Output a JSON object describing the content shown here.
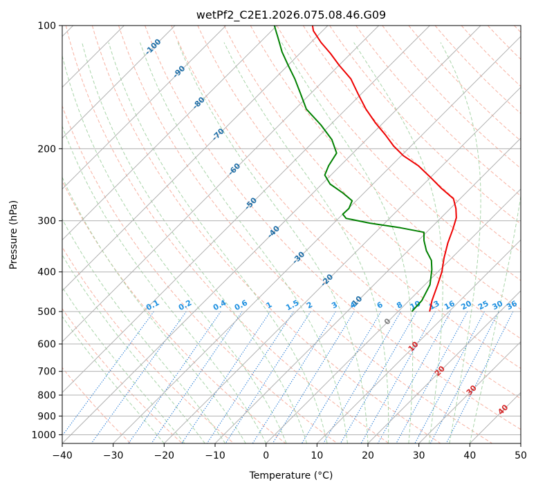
{
  "chart_data": {
    "type": "line",
    "title": "wetPf2_C2E1.2026.075.08.46.G09",
    "xlabel": "Temperature (°C)",
    "ylabel": "Pressure (hPa)",
    "xlim": [
      -40,
      50
    ],
    "ylim": [
      1050,
      100
    ],
    "y_scale": "log",
    "grid": true,
    "x_ticks": [
      "−40",
      "−30",
      "−20",
      "−10",
      "0",
      "10",
      "20",
      "30",
      "40",
      "50"
    ],
    "y_ticks": [
      {
        "value": 100,
        "label": "100"
      },
      {
        "value": 200,
        "label": "200"
      },
      {
        "value": 300,
        "label": "300"
      },
      {
        "value": 400,
        "label": "400"
      },
      {
        "value": 500,
        "label": "500"
      },
      {
        "value": 600,
        "label": "600"
      },
      {
        "value": 700,
        "label": "700"
      },
      {
        "value": 800,
        "label": "800"
      },
      {
        "value": 900,
        "label": "900"
      },
      {
        "value": 1000,
        "label": "1000"
      }
    ],
    "series": [
      {
        "color": "#ee0000",
        "points": [
          {
            "x": 6.2,
            "y": 500
          },
          {
            "x": 4.5,
            "y": 470
          },
          {
            "x": 2.5,
            "y": 430
          },
          {
            "x": 0.8,
            "y": 400
          },
          {
            "x": -1.5,
            "y": 370
          },
          {
            "x": -3.7,
            "y": 340
          },
          {
            "x": -5.4,
            "y": 315
          },
          {
            "x": -7.0,
            "y": 295
          },
          {
            "x": -8.9,
            "y": 280
          },
          {
            "x": -11.3,
            "y": 265
          },
          {
            "x": -15.7,
            "y": 250
          },
          {
            "x": -20.0,
            "y": 235
          },
          {
            "x": -24.7,
            "y": 220
          },
          {
            "x": -29.6,
            "y": 208
          },
          {
            "x": -33.4,
            "y": 197
          },
          {
            "x": -37.2,
            "y": 185
          },
          {
            "x": -41.5,
            "y": 173
          },
          {
            "x": -46.1,
            "y": 160
          },
          {
            "x": -50.6,
            "y": 147
          },
          {
            "x": -55.0,
            "y": 135
          },
          {
            "x": -60.0,
            "y": 125
          },
          {
            "x": -64.0,
            "y": 117
          },
          {
            "x": -68.0,
            "y": 110
          },
          {
            "x": -71.8,
            "y": 103
          },
          {
            "x": -73.0,
            "y": 100
          }
        ]
      },
      {
        "color": "#008000",
        "points": [
          {
            "x": 2.7,
            "y": 500
          },
          {
            "x": 2.5,
            "y": 470
          },
          {
            "x": 1.0,
            "y": 430
          },
          {
            "x": -1.6,
            "y": 395
          },
          {
            "x": -3.5,
            "y": 375
          },
          {
            "x": -6.4,
            "y": 355
          },
          {
            "x": -8.9,
            "y": 335
          },
          {
            "x": -10.5,
            "y": 320
          },
          {
            "x": -16.0,
            "y": 312
          },
          {
            "x": -22.9,
            "y": 304
          },
          {
            "x": -28.5,
            "y": 296
          },
          {
            "x": -30.0,
            "y": 289
          },
          {
            "x": -29.9,
            "y": 280
          },
          {
            "x": -30.8,
            "y": 268
          },
          {
            "x": -34.3,
            "y": 256
          },
          {
            "x": -38.4,
            "y": 244
          },
          {
            "x": -41.2,
            "y": 232
          },
          {
            "x": -42.3,
            "y": 220
          },
          {
            "x": -43.2,
            "y": 205
          },
          {
            "x": -46.8,
            "y": 190
          },
          {
            "x": -51.8,
            "y": 175
          },
          {
            "x": -57.8,
            "y": 160
          },
          {
            "x": -62.2,
            "y": 146
          },
          {
            "x": -66.0,
            "y": 135
          },
          {
            "x": -70.0,
            "y": 125
          },
          {
            "x": -73.8,
            "y": 116
          },
          {
            "x": -77.0,
            "y": 108
          },
          {
            "x": -79.6,
            "y": 102
          },
          {
            "x": -80.5,
            "y": 100
          }
        ]
      }
    ],
    "isotherm_labels": [
      "-100",
      "-90",
      "-80",
      "-70",
      "-60",
      "-50",
      "-40",
      "-30",
      "-20",
      "-10",
      "0",
      "10",
      "20",
      "30",
      "40"
    ],
    "isotherm_label_positions": [
      {
        "t": -100,
        "p": 113
      },
      {
        "t": -90,
        "p": 130
      },
      {
        "t": -80,
        "p": 155
      },
      {
        "t": -70,
        "p": 185
      },
      {
        "t": -60,
        "p": 225
      },
      {
        "t": -50,
        "p": 273
      },
      {
        "t": -40,
        "p": 320
      },
      {
        "t": -30,
        "p": 370
      },
      {
        "t": -20,
        "p": 420
      },
      {
        "t": -10,
        "p": 475
      },
      {
        "t": 0,
        "p": 530
      },
      {
        "t": 10,
        "p": 610
      },
      {
        "t": 20,
        "p": 700
      },
      {
        "t": 30,
        "p": 780
      },
      {
        "t": 40,
        "p": 870
      }
    ],
    "mixing_ratio_labels": [
      "0.1",
      "0.2",
      "0.4",
      "0.6",
      "1",
      "1.5",
      "2",
      "3",
      "4",
      "6",
      "8",
      "10",
      "13",
      "16",
      "20",
      "25",
      "30",
      "36"
    ],
    "mixing_ratio_values": [
      0.1,
      0.2,
      0.4,
      0.6,
      1,
      1.5,
      2,
      3,
      4,
      6,
      8,
      10,
      13,
      16,
      20,
      25,
      30,
      36
    ],
    "colors": {
      "temperature": "#ee0000",
      "dewpoint": "#008000",
      "isotherm_lines": "#b0b0b0",
      "isotherm_labels_cold": "#1f6fa8",
      "isotherm_labels_warm": "#d62728",
      "isotherm_label_zero": "#808080",
      "dry_adiabats": "#f7b0a0",
      "moist_adiabats": "#a8d4a8",
      "mixing_ratio_lines": "#1f77d4",
      "mixing_ratio_labels": "#1e90e0",
      "outer_curves": "#e0c8a8"
    }
  }
}
